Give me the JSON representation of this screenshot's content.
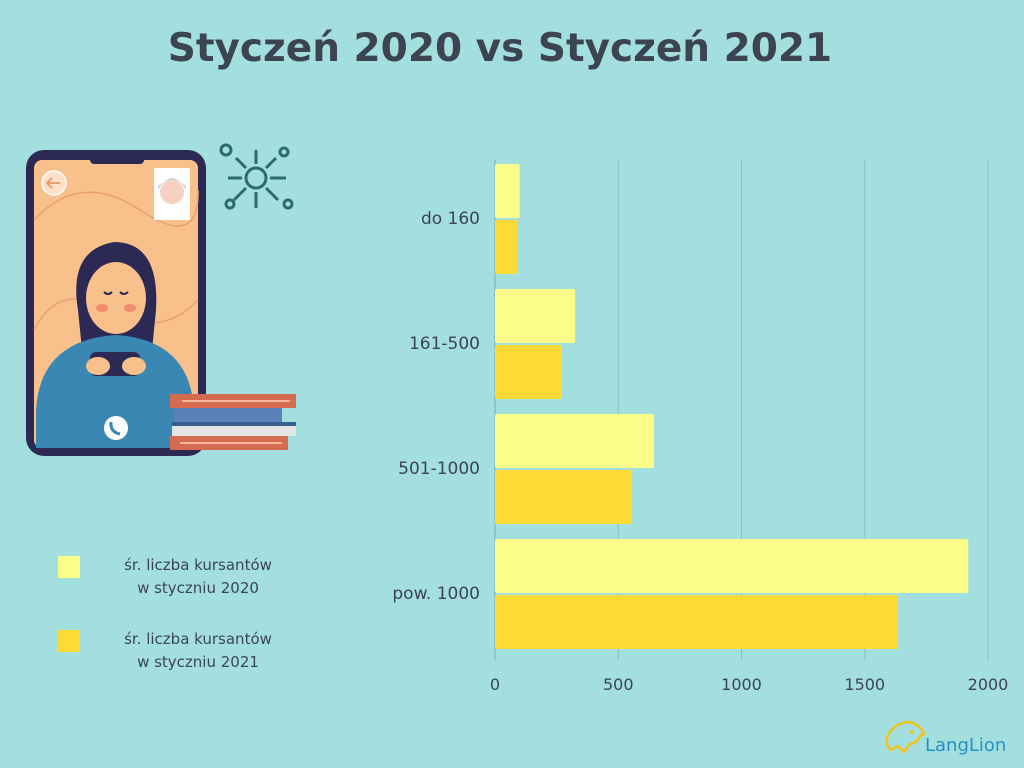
{
  "title": "Styczeń 2020 vs Styczeń 2021",
  "colors": {
    "background": "#a4dfe0",
    "series_2020": "#fcfc8a",
    "series_2021": "#fedb34",
    "text": "#3d4451",
    "grid": "#8fbcbd"
  },
  "legend": [
    {
      "line1": "śr. liczba kursantów",
      "line2": "w styczniu 2020",
      "color": "#fcfc8a"
    },
    {
      "line1": "śr. liczba kursantów",
      "line2": "w styczniu 2021",
      "color": "#fedb34"
    }
  ],
  "logo": {
    "text": "LangLion",
    "icon": "lion-logo-icon"
  },
  "illustration": {
    "icons": [
      "phone-icon",
      "back-arrow-icon",
      "virus-icon",
      "books-icon",
      "call-icon",
      "woman-avatar-icon"
    ]
  },
  "chart_data": {
    "type": "bar",
    "orientation": "horizontal",
    "categories": [
      "do 160",
      "161-500",
      "501-1000",
      "pow. 1000"
    ],
    "series": [
      {
        "values": [
          100,
          325,
          645,
          1920
        ]
      },
      {
        "values": [
          90,
          270,
          555,
          1635
        ]
      }
    ],
    "xlim": [
      0,
      2000
    ],
    "xticks": [
      0,
      500,
      1000,
      1500,
      2000
    ],
    "grid": true,
    "legend_position": "left"
  }
}
